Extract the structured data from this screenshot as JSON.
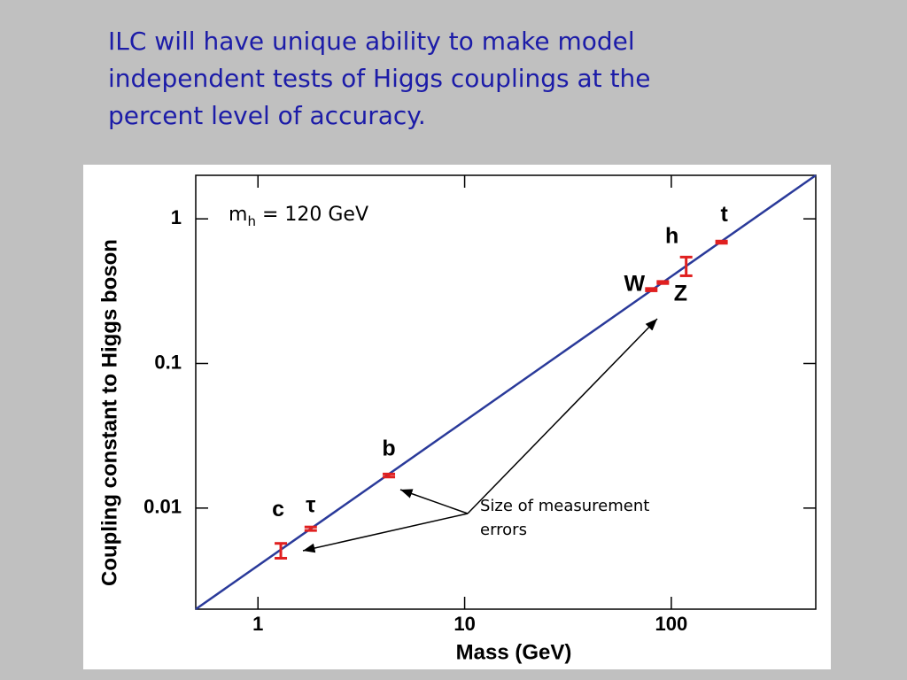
{
  "chart_data": {
    "type": "errorbar",
    "title": [
      "ILC will have unique ability to make model",
      "independent tests of Higgs couplings at the",
      "percent level of accuracy."
    ],
    "x_label": "Mass (GeV)",
    "y_label": "Coupling constant to Higgs boson",
    "xscale": "log",
    "yscale": "log",
    "xlim": [
      0.5,
      500
    ],
    "ylim": [
      0.002,
      2
    ],
    "xticks": [
      1,
      10,
      100
    ],
    "yticks": [
      1,
      0.1,
      0.01
    ],
    "categories": [
      "c",
      "τ",
      "b",
      "W",
      "Z",
      "h",
      "t"
    ],
    "x": [
      1.29,
      1.8,
      4.3,
      80,
      91,
      118,
      175
    ],
    "values": [
      0.0051,
      0.0072,
      0.0168,
      0.324,
      0.363,
      0.474,
      0.69
    ],
    "errors": [
      0.0006,
      0.0002,
      0.0004,
      0.006,
      0.006,
      0.07,
      0.012
    ],
    "error_color": "#e02020",
    "fit_line": {
      "x": [
        0.5,
        500
      ],
      "values": [
        0.002,
        2
      ],
      "color": "#2a3a9a"
    },
    "annotation": {
      "main": "m",
      "subscript": "h",
      "rest": " = 120 GeV"
    },
    "note": [
      "Size of measurement",
      "errors"
    ]
  }
}
